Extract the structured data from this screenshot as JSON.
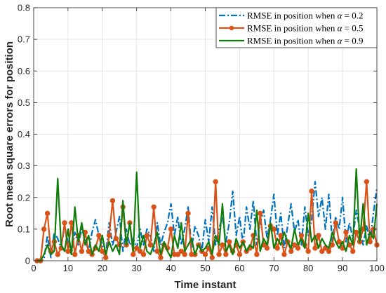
{
  "chart_data": {
    "type": "line",
    "xlabel": "Time instant",
    "ylabel": "Root mean square errors for position",
    "xlim": [
      0,
      100
    ],
    "ylim": [
      0,
      0.8
    ],
    "xticks": [
      "0",
      "10",
      "20",
      "30",
      "40",
      "50",
      "60",
      "70",
      "80",
      "90",
      "100"
    ],
    "yticks": [
      "0",
      "0.1",
      "0.2",
      "0.3",
      "0.4",
      "0.5",
      "0.6",
      "0.7",
      "0.8"
    ],
    "grid": true,
    "legend_position": "top-right",
    "series": [
      {
        "name": "RMSE in position when α = 0.2",
        "name_prefix": "RMSE in position when ",
        "name_symbol": "α",
        "name_suffix": " = 0.2",
        "color": "#0072BD",
        "style": "dash-dot",
        "marker": "none",
        "x": [
          1,
          2,
          3,
          4,
          5,
          6,
          7,
          8,
          9,
          10,
          11,
          12,
          13,
          14,
          15,
          16,
          17,
          18,
          19,
          20,
          21,
          22,
          23,
          24,
          25,
          26,
          27,
          28,
          29,
          30,
          31,
          32,
          33,
          34,
          35,
          36,
          37,
          38,
          39,
          40,
          41,
          42,
          43,
          44,
          45,
          46,
          47,
          48,
          49,
          50,
          51,
          52,
          53,
          54,
          55,
          56,
          57,
          58,
          59,
          60,
          61,
          62,
          63,
          64,
          65,
          66,
          67,
          68,
          69,
          70,
          71,
          72,
          73,
          74,
          75,
          76,
          77,
          78,
          79,
          80,
          81,
          82,
          83,
          84,
          85,
          86,
          87,
          88,
          89,
          90,
          91,
          92,
          93,
          94,
          95,
          96,
          97,
          98,
          99,
          100
        ],
        "values": [
          0.0,
          0.0,
          0.005,
          0.08,
          0.01,
          0.09,
          0.07,
          0.04,
          0.11,
          0.06,
          0.02,
          0.09,
          0.05,
          0.1,
          0.07,
          0.03,
          0.09,
          0.13,
          0.08,
          0.05,
          0.02,
          0.12,
          0.05,
          0.09,
          0.14,
          0.03,
          0.1,
          0.05,
          0.07,
          0.04,
          0.1,
          0.05,
          0.1,
          0.08,
          0.03,
          0.12,
          0.05,
          0.09,
          0.12,
          0.18,
          0.08,
          0.14,
          0.05,
          0.1,
          0.17,
          0.04,
          0.11,
          0.08,
          0.03,
          0.13,
          0.06,
          0.17,
          0.05,
          0.1,
          0.14,
          0.06,
          0.12,
          0.22,
          0.08,
          0.14,
          0.05,
          0.17,
          0.1,
          0.19,
          0.05,
          0.12,
          0.16,
          0.07,
          0.13,
          0.21,
          0.08,
          0.15,
          0.04,
          0.11,
          0.18,
          0.09,
          0.13,
          0.05,
          0.17,
          0.08,
          0.13,
          0.25,
          0.14,
          0.2,
          0.1,
          0.21,
          0.06,
          0.14,
          0.1,
          0.2,
          0.06,
          0.12,
          0.07,
          0.16,
          0.1,
          0.05,
          0.11,
          0.06,
          0.15,
          0.23
        ]
      },
      {
        "name": "RMSE in position when α = 0.5",
        "name_prefix": "RMSE in position when ",
        "name_symbol": "α",
        "name_suffix": " = 0.5",
        "color": "#D95319",
        "style": "solid",
        "marker": "circle",
        "x": [
          1,
          2,
          3,
          4,
          5,
          6,
          7,
          8,
          9,
          10,
          11,
          12,
          13,
          14,
          15,
          16,
          17,
          18,
          19,
          20,
          21,
          22,
          23,
          24,
          25,
          26,
          27,
          28,
          29,
          30,
          31,
          32,
          33,
          34,
          35,
          36,
          37,
          38,
          39,
          40,
          41,
          42,
          43,
          44,
          45,
          46,
          47,
          48,
          49,
          50,
          51,
          52,
          53,
          54,
          55,
          56,
          57,
          58,
          59,
          60,
          61,
          62,
          63,
          64,
          65,
          66,
          67,
          68,
          69,
          70,
          71,
          72,
          73,
          74,
          75,
          76,
          77,
          78,
          79,
          80,
          81,
          82,
          83,
          84,
          85,
          86,
          87,
          88,
          89,
          90,
          91,
          92,
          93,
          94,
          95,
          96,
          97,
          98,
          99,
          100
        ],
        "values": [
          0.0,
          0.0,
          0.1,
          0.15,
          0.03,
          0.06,
          0.02,
          0.04,
          0.12,
          0.03,
          0.12,
          0.02,
          0.08,
          0.03,
          0.09,
          0.03,
          0.02,
          0.04,
          0.08,
          0.03,
          0.01,
          0.08,
          0.19,
          0.07,
          0.05,
          0.17,
          0.05,
          0.12,
          0.02,
          0.04,
          0.03,
          0.02,
          0.08,
          0.05,
          0.17,
          0.03,
          0.01,
          0.05,
          0.04,
          0.1,
          0.02,
          0.02,
          0.03,
          0.02,
          0.15,
          0.02,
          0.02,
          0.05,
          0.03,
          0.02,
          0.04,
          0.01,
          0.25,
          0.02,
          0.05,
          0.02,
          0.06,
          0.03,
          0.05,
          0.02,
          0.06,
          0.03,
          0.04,
          0.08,
          0.02,
          0.15,
          0.05,
          0.04,
          0.11,
          0.1,
          0.04,
          0.08,
          0.02,
          0.06,
          0.03,
          0.05,
          0.04,
          0.08,
          0.05,
          0.03,
          0.22,
          0.04,
          0.08,
          0.03,
          0.04,
          0.03,
          0.05,
          0.12,
          0.06,
          0.04,
          0.09,
          0.05,
          0.03,
          0.09,
          0.06,
          0.1,
          0.25,
          0.06,
          0.1,
          0.05
        ]
      },
      {
        "name": "RMSE in position when α = 0.9",
        "name_prefix": "RMSE in position when ",
        "name_symbol": "α",
        "name_suffix": " = 0.9",
        "color": "#107E0A",
        "style": "solid",
        "marker": "none",
        "x": [
          1,
          2,
          3,
          4,
          5,
          6,
          7,
          8,
          9,
          10,
          11,
          12,
          13,
          14,
          15,
          16,
          17,
          18,
          19,
          20,
          21,
          22,
          23,
          24,
          25,
          26,
          27,
          28,
          29,
          30,
          31,
          32,
          33,
          34,
          35,
          36,
          37,
          38,
          39,
          40,
          41,
          42,
          43,
          44,
          45,
          46,
          47,
          48,
          49,
          50,
          51,
          52,
          53,
          54,
          55,
          56,
          57,
          58,
          59,
          60,
          61,
          62,
          63,
          64,
          65,
          66,
          67,
          68,
          69,
          70,
          71,
          72,
          73,
          74,
          75,
          76,
          77,
          78,
          79,
          80,
          81,
          82,
          83,
          84,
          85,
          86,
          87,
          88,
          89,
          90,
          91,
          92,
          93,
          94,
          95,
          96,
          97,
          98,
          99,
          100
        ],
        "values": [
          0.0,
          0.0,
          0.02,
          0.05,
          0.02,
          0.03,
          0.26,
          0.05,
          0.03,
          0.1,
          0.02,
          0.17,
          0.06,
          0.12,
          0.05,
          0.08,
          0.02,
          0.05,
          0.03,
          0.08,
          0.02,
          0.06,
          0.03,
          0.05,
          0.02,
          0.19,
          0.05,
          0.12,
          0.03,
          0.28,
          0.04,
          0.08,
          0.03,
          0.02,
          0.05,
          0.09,
          0.02,
          0.06,
          0.03,
          0.01,
          0.08,
          0.04,
          0.12,
          0.03,
          0.05,
          0.07,
          0.02,
          0.05,
          0.03,
          0.04,
          0.06,
          0.02,
          0.08,
          0.05,
          0.18,
          0.03,
          0.05,
          0.02,
          0.07,
          0.04,
          0.06,
          0.03,
          0.05,
          0.04,
          0.16,
          0.03,
          0.07,
          0.05,
          0.12,
          0.04,
          0.07,
          0.05,
          0.09,
          0.06,
          0.04,
          0.1,
          0.05,
          0.07,
          0.04,
          0.15,
          0.06,
          0.08,
          0.04,
          0.07,
          0.05,
          0.04,
          0.09,
          0.06,
          0.04,
          0.06,
          0.03,
          0.08,
          0.05,
          0.29,
          0.06,
          0.18,
          0.05,
          0.09,
          0.07,
          0.18
        ]
      }
    ]
  }
}
